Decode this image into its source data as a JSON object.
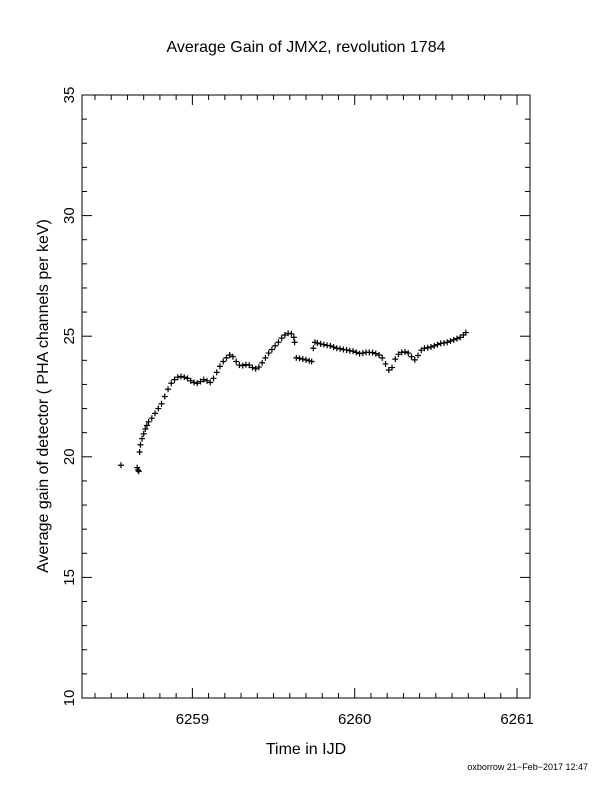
{
  "chart_data": {
    "type": "scatter",
    "title": "Average Gain of JMX2, revolution 1784",
    "xlabel": "Time in IJD",
    "ylabel": "Average gain of detector ( PHA channels per keV)",
    "xlim": [
      6258.32,
      6261.08
    ],
    "ylim": [
      10,
      35
    ],
    "x_ticks": [
      "6259",
      "6260",
      "6261"
    ],
    "y_ticks": [
      "10",
      "15",
      "20",
      "25",
      "30",
      "35"
    ],
    "marker": "plus",
    "grid": false,
    "series": [
      {
        "points": [
          [
            6258.56,
            19.65
          ],
          [
            6258.66,
            19.55
          ],
          [
            6258.665,
            19.45
          ],
          [
            6258.67,
            19.4
          ],
          [
            6258.675,
            20.2
          ],
          [
            6258.68,
            20.5
          ],
          [
            6258.69,
            20.75
          ],
          [
            6258.7,
            20.95
          ],
          [
            6258.71,
            21.15
          ],
          [
            6258.72,
            21.3
          ],
          [
            6258.73,
            21.45
          ],
          [
            6258.75,
            21.6
          ],
          [
            6258.77,
            21.8
          ],
          [
            6258.79,
            22.0
          ],
          [
            6258.81,
            22.2
          ],
          [
            6258.83,
            22.5
          ],
          [
            6258.85,
            22.8
          ],
          [
            6258.87,
            23.05
          ],
          [
            6258.89,
            23.2
          ],
          [
            6258.91,
            23.3
          ],
          [
            6258.93,
            23.33
          ],
          [
            6258.95,
            23.3
          ],
          [
            6258.97,
            23.25
          ],
          [
            6258.99,
            23.15
          ],
          [
            6259.01,
            23.08
          ],
          [
            6259.03,
            23.05
          ],
          [
            6259.05,
            23.12
          ],
          [
            6259.07,
            23.2
          ],
          [
            6259.09,
            23.15
          ],
          [
            6259.11,
            23.08
          ],
          [
            6259.13,
            23.25
          ],
          [
            6259.15,
            23.5
          ],
          [
            6259.17,
            23.75
          ],
          [
            6259.19,
            23.95
          ],
          [
            6259.21,
            24.1
          ],
          [
            6259.23,
            24.22
          ],
          [
            6259.25,
            24.15
          ],
          [
            6259.27,
            23.95
          ],
          [
            6259.29,
            23.8
          ],
          [
            6259.31,
            23.78
          ],
          [
            6259.33,
            23.82
          ],
          [
            6259.35,
            23.8
          ],
          [
            6259.37,
            23.7
          ],
          [
            6259.39,
            23.65
          ],
          [
            6259.41,
            23.72
          ],
          [
            6259.43,
            23.9
          ],
          [
            6259.45,
            24.1
          ],
          [
            6259.47,
            24.3
          ],
          [
            6259.49,
            24.45
          ],
          [
            6259.51,
            24.6
          ],
          [
            6259.53,
            24.75
          ],
          [
            6259.55,
            24.92
          ],
          [
            6259.57,
            25.05
          ],
          [
            6259.59,
            25.12
          ],
          [
            6259.61,
            25.1
          ],
          [
            6259.625,
            24.95
          ],
          [
            6259.63,
            24.75
          ],
          [
            6259.64,
            24.1
          ],
          [
            6259.66,
            24.08
          ],
          [
            6259.68,
            24.05
          ],
          [
            6259.7,
            24.02
          ],
          [
            6259.72,
            23.98
          ],
          [
            6259.735,
            23.95
          ],
          [
            6259.745,
            24.5
          ],
          [
            6259.755,
            24.75
          ],
          [
            6259.77,
            24.72
          ],
          [
            6259.79,
            24.68
          ],
          [
            6259.81,
            24.65
          ],
          [
            6259.83,
            24.62
          ],
          [
            6259.85,
            24.6
          ],
          [
            6259.87,
            24.55
          ],
          [
            6259.89,
            24.5
          ],
          [
            6259.91,
            24.48
          ],
          [
            6259.93,
            24.45
          ],
          [
            6259.95,
            24.43
          ],
          [
            6259.97,
            24.4
          ],
          [
            6259.99,
            24.38
          ],
          [
            6260.01,
            24.33
          ],
          [
            6260.03,
            24.28
          ],
          [
            6260.05,
            24.3
          ],
          [
            6260.07,
            24.33
          ],
          [
            6260.09,
            24.33
          ],
          [
            6260.11,
            24.32
          ],
          [
            6260.13,
            24.28
          ],
          [
            6260.15,
            24.22
          ],
          [
            6260.17,
            24.1
          ],
          [
            6260.19,
            23.85
          ],
          [
            6260.21,
            23.6
          ],
          [
            6260.23,
            23.7
          ],
          [
            6260.25,
            24.05
          ],
          [
            6260.27,
            24.25
          ],
          [
            6260.29,
            24.33
          ],
          [
            6260.31,
            24.35
          ],
          [
            6260.33,
            24.3
          ],
          [
            6260.35,
            24.15
          ],
          [
            6260.37,
            24.02
          ],
          [
            6260.39,
            24.2
          ],
          [
            6260.41,
            24.42
          ],
          [
            6260.43,
            24.5
          ],
          [
            6260.45,
            24.52
          ],
          [
            6260.47,
            24.55
          ],
          [
            6260.49,
            24.6
          ],
          [
            6260.51,
            24.65
          ],
          [
            6260.53,
            24.7
          ],
          [
            6260.55,
            24.72
          ],
          [
            6260.57,
            24.75
          ],
          [
            6260.59,
            24.8
          ],
          [
            6260.61,
            24.85
          ],
          [
            6260.63,
            24.9
          ],
          [
            6260.65,
            24.95
          ],
          [
            6260.67,
            25.05
          ],
          [
            6260.685,
            25.15
          ]
        ]
      }
    ],
    "credit": "oxborrow 21−Feb−2017 12:47"
  }
}
